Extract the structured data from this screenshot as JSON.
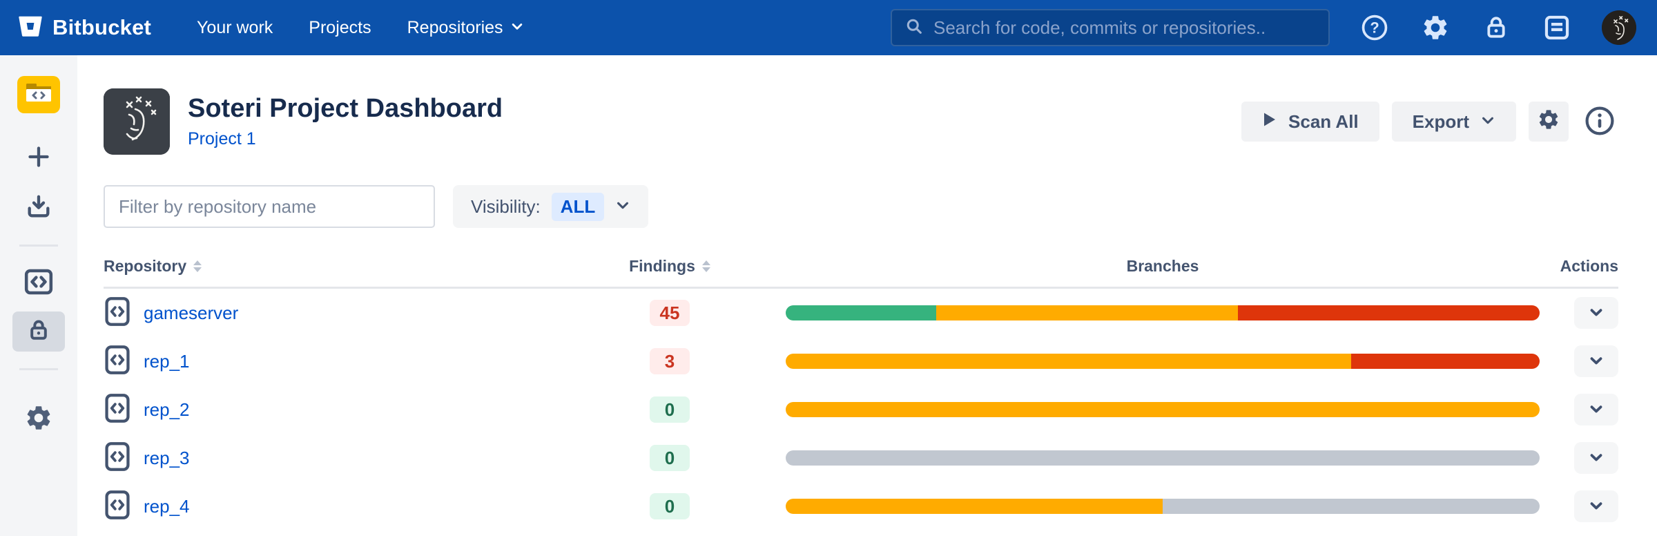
{
  "navbar": {
    "brand": "Bitbucket",
    "items": [
      {
        "label": "Your work",
        "has_dropdown": false
      },
      {
        "label": "Projects",
        "has_dropdown": false
      },
      {
        "label": "Repositories",
        "has_dropdown": true
      }
    ],
    "search": {
      "placeholder": "Search for code, commits or repositories.."
    },
    "icons": [
      "help-icon",
      "settings-gear-icon",
      "lock-icon",
      "inbox-icon",
      "user-avatar"
    ]
  },
  "sidebar": {
    "items": [
      {
        "name": "project-avatar",
        "icon": "folder-code-icon",
        "selected": false
      },
      {
        "name": "create",
        "icon": "plus-icon",
        "selected": false
      },
      {
        "name": "import",
        "icon": "download-icon",
        "selected": false
      },
      {
        "name": "repositories",
        "icon": "code-icon",
        "selected": false
      },
      {
        "name": "security",
        "icon": "lock-icon",
        "selected": true
      },
      {
        "name": "settings",
        "icon": "gear-icon",
        "selected": false
      }
    ]
  },
  "page_header": {
    "title": "Soteri Project Dashboard",
    "project_link": "Project 1",
    "scan_all_label": "Scan All",
    "export_label": "Export"
  },
  "filter": {
    "placeholder": "Filter by repository name",
    "visibility_label": "Visibility:",
    "visibility_value": "ALL"
  },
  "table": {
    "columns": [
      "Repository",
      "Findings",
      "Branches",
      "Actions"
    ],
    "rows": [
      {
        "name": "gameserver",
        "findings": "45",
        "findings_level": "danger",
        "branch_segments": [
          {
            "type": "green",
            "fraction": 0.2
          },
          {
            "type": "amber",
            "fraction": 0.4
          },
          {
            "type": "red",
            "fraction": 0.4
          }
        ]
      },
      {
        "name": "rep_1",
        "findings": "3",
        "findings_level": "danger",
        "branch_segments": [
          {
            "type": "amber",
            "fraction": 0.75
          },
          {
            "type": "red",
            "fraction": 0.25
          }
        ]
      },
      {
        "name": "rep_2",
        "findings": "0",
        "findings_level": "success",
        "branch_segments": [
          {
            "type": "amber",
            "fraction": 1.0
          }
        ]
      },
      {
        "name": "rep_3",
        "findings": "0",
        "findings_level": "success",
        "branch_segments": [
          {
            "type": "gray",
            "fraction": 1.0
          }
        ]
      },
      {
        "name": "rep_4",
        "findings": "0",
        "findings_level": "success",
        "branch_segments": [
          {
            "type": "amber",
            "fraction": 0.5
          },
          {
            "type": "gray",
            "fraction": 0.5
          }
        ]
      }
    ]
  },
  "colors": {
    "navbar_bg": "#0C52AB",
    "link_blue": "#0052CC",
    "segment": {
      "green": "#36B37E",
      "amber": "#FFAB00",
      "red": "#DE350B",
      "gray": "#C1C7D0"
    },
    "badge": {
      "danger": {
        "text": "#CA3521",
        "bg": "#FFECEB"
      },
      "success": {
        "text": "#1F6E4E",
        "bg": "#E0F7EC"
      }
    },
    "project_avatar_yellow": "#FFC400"
  }
}
